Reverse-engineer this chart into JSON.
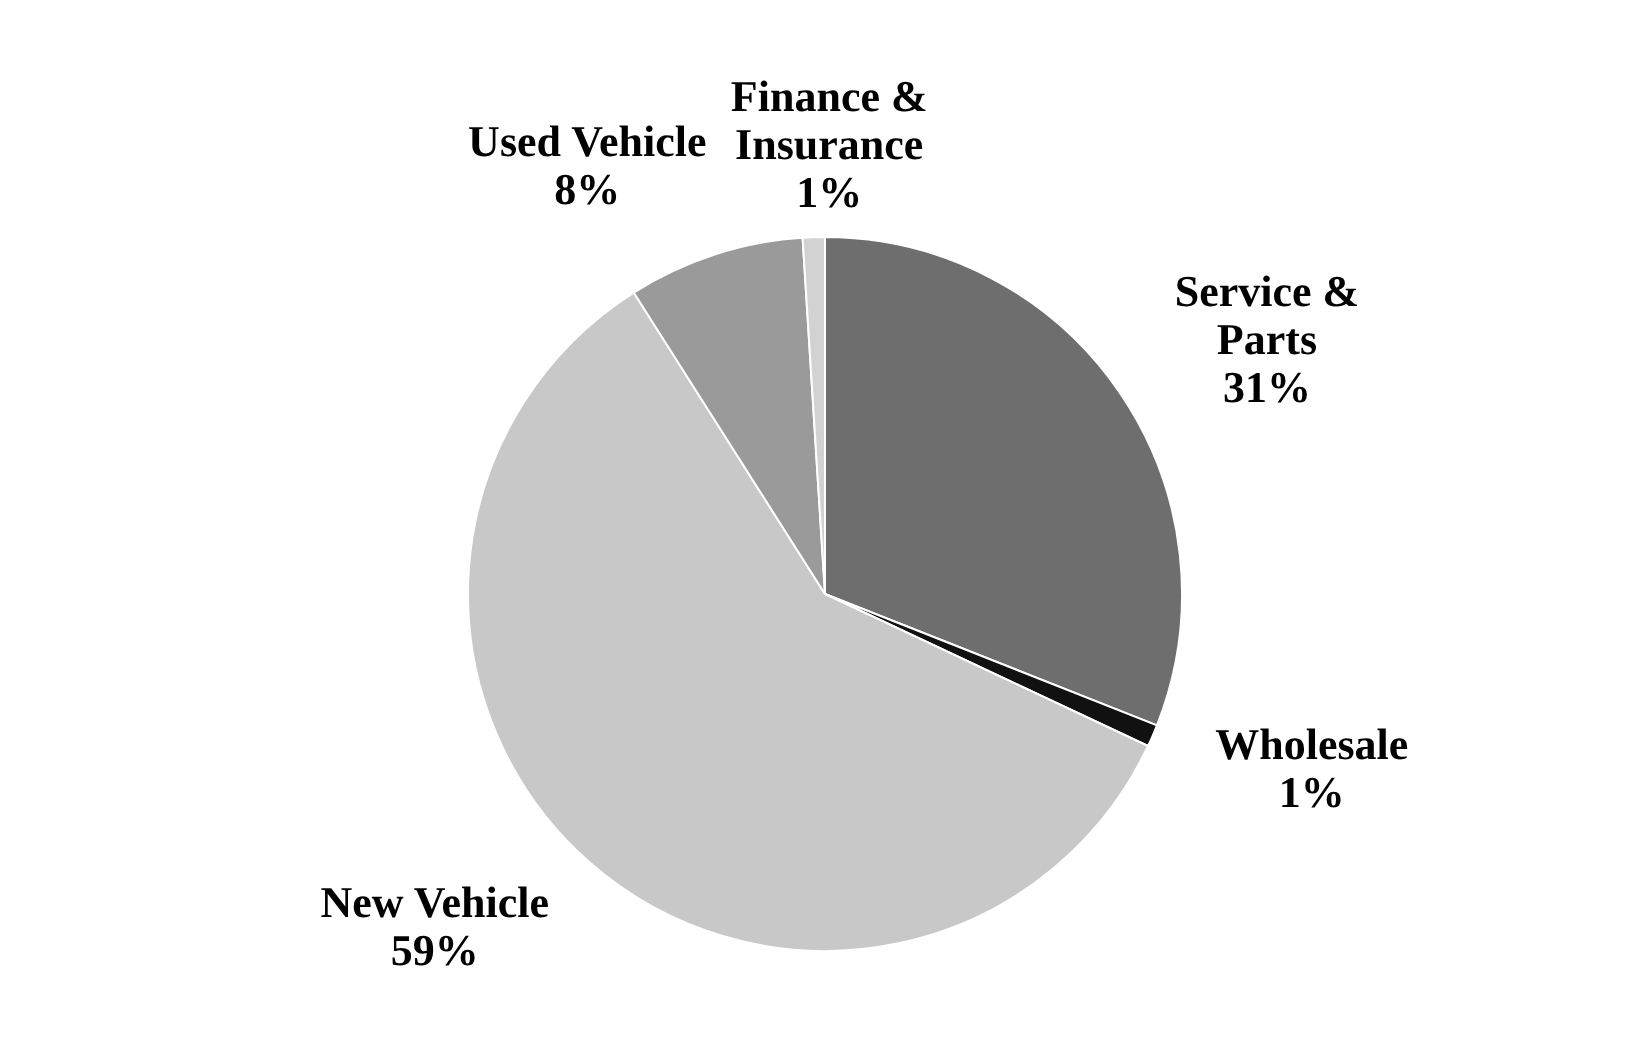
{
  "chart_data": {
    "type": "pie",
    "categories": [
      "Service & Parts",
      "Wholesale",
      "New Vehicle",
      "Used Vehicle",
      "Finance & Insurance"
    ],
    "values": [
      31,
      1,
      59,
      8,
      1
    ],
    "value_labels": [
      "31%",
      "1%",
      "59%",
      "8%",
      "1%"
    ],
    "colors": [
      "#6e6e6e",
      "#111111",
      "#c8c8c8",
      "#9a9a9a",
      "#d2d2d2"
    ],
    "legend": false
  }
}
